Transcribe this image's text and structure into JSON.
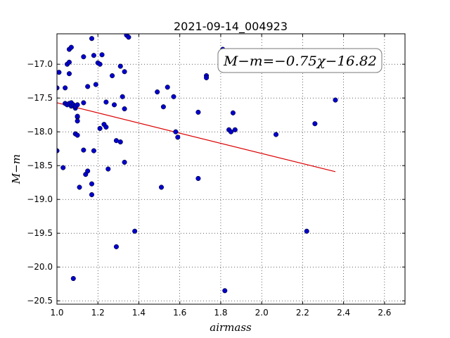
{
  "chart_data": {
    "type": "scatter",
    "title": "2021-09-14_004923",
    "xlabel": "airmass",
    "ylabel": "M−m",
    "xlim": [
      1.0,
      2.7
    ],
    "ylim": [
      -20.55,
      -16.55
    ],
    "x_ticks": [
      "1.0",
      "1.2",
      "1.4",
      "1.6",
      "1.8",
      "2.0",
      "2.2",
      "2.4",
      "2.6"
    ],
    "y_ticks": [
      "−17.0",
      "−17.5",
      "−18.0",
      "−18.5",
      "−19.0",
      "−19.5",
      "−20.0",
      "−20.5"
    ],
    "grid": true,
    "annotation": "M−m=−0.75χ−16.82",
    "annotation_position": "top-right",
    "colors": {
      "points": "#0000cc",
      "fit": "#dd0000"
    },
    "fit": {
      "slope": -0.75,
      "intercept": -16.82,
      "x_range": [
        1.0,
        2.36
      ]
    },
    "points": [
      [
        1.0,
        -17.35
      ],
      [
        1.01,
        -17.12
      ],
      [
        1.0,
        -18.28
      ],
      [
        1.03,
        -18.53
      ],
      [
        1.04,
        -17.35
      ],
      [
        1.04,
        -17.58
      ],
      [
        1.05,
        -17.6
      ],
      [
        1.05,
        -17.0
      ],
      [
        1.06,
        -16.97
      ],
      [
        1.06,
        -17.14
      ],
      [
        1.06,
        -17.58
      ],
      [
        1.07,
        -17.62
      ],
      [
        1.06,
        -16.78
      ],
      [
        1.07,
        -16.75
      ],
      [
        1.07,
        -17.57
      ],
      [
        1.08,
        -17.6
      ],
      [
        1.09,
        -17.65
      ],
      [
        1.09,
        -17.62
      ],
      [
        1.09,
        -17.62
      ],
      [
        1.1,
        -17.6
      ],
      [
        1.1,
        -17.78
      ],
      [
        1.1,
        -17.84
      ],
      [
        1.1,
        -17.77
      ],
      [
        1.09,
        -18.03
      ],
      [
        1.1,
        -18.05
      ],
      [
        1.11,
        -18.82
      ],
      [
        1.08,
        -20.17
      ],
      [
        1.13,
        -16.89
      ],
      [
        1.13,
        -17.57
      ],
      [
        1.13,
        -18.27
      ],
      [
        1.14,
        -18.63
      ],
      [
        1.15,
        -18.58
      ],
      [
        1.15,
        -17.33
      ],
      [
        1.17,
        -16.62
      ],
      [
        1.17,
        -18.77
      ],
      [
        1.17,
        -18.93
      ],
      [
        1.18,
        -16.87
      ],
      [
        1.18,
        -18.28
      ],
      [
        1.19,
        -17.3
      ],
      [
        1.2,
        -16.98
      ],
      [
        1.21,
        -17.0
      ],
      [
        1.21,
        -17.95
      ],
      [
        1.22,
        -16.86
      ],
      [
        1.23,
        -17.89
      ],
      [
        1.24,
        -17.56
      ],
      [
        1.24,
        -17.93
      ],
      [
        1.25,
        -18.55
      ],
      [
        1.27,
        -17.17
      ],
      [
        1.28,
        -17.6
      ],
      [
        1.29,
        -18.13
      ],
      [
        1.29,
        -19.7
      ],
      [
        1.31,
        -18.15
      ],
      [
        1.31,
        -17.03
      ],
      [
        1.32,
        -17.48
      ],
      [
        1.33,
        -17.11
      ],
      [
        1.33,
        -17.66
      ],
      [
        1.33,
        -18.45
      ],
      [
        1.34,
        -16.57
      ],
      [
        1.35,
        -16.6
      ],
      [
        1.38,
        -19.47
      ],
      [
        1.49,
        -17.41
      ],
      [
        1.51,
        -18.82
      ],
      [
        1.52,
        -17.63
      ],
      [
        1.54,
        -17.34
      ],
      [
        1.57,
        -17.48
      ],
      [
        1.58,
        -18.0
      ],
      [
        1.59,
        -18.08
      ],
      [
        1.69,
        -17.71
      ],
      [
        1.69,
        -18.69
      ],
      [
        1.73,
        -17.17
      ],
      [
        1.73,
        -17.2
      ],
      [
        1.81,
        -16.78
      ],
      [
        1.82,
        -20.35
      ],
      [
        1.84,
        -17.97
      ],
      [
        1.85,
        -18.0
      ],
      [
        1.86,
        -17.72
      ],
      [
        1.87,
        -17.97
      ],
      [
        2.07,
        -18.04
      ],
      [
        2.22,
        -19.47
      ],
      [
        2.26,
        -17.88
      ],
      [
        2.36,
        -17.53
      ]
    ]
  }
}
